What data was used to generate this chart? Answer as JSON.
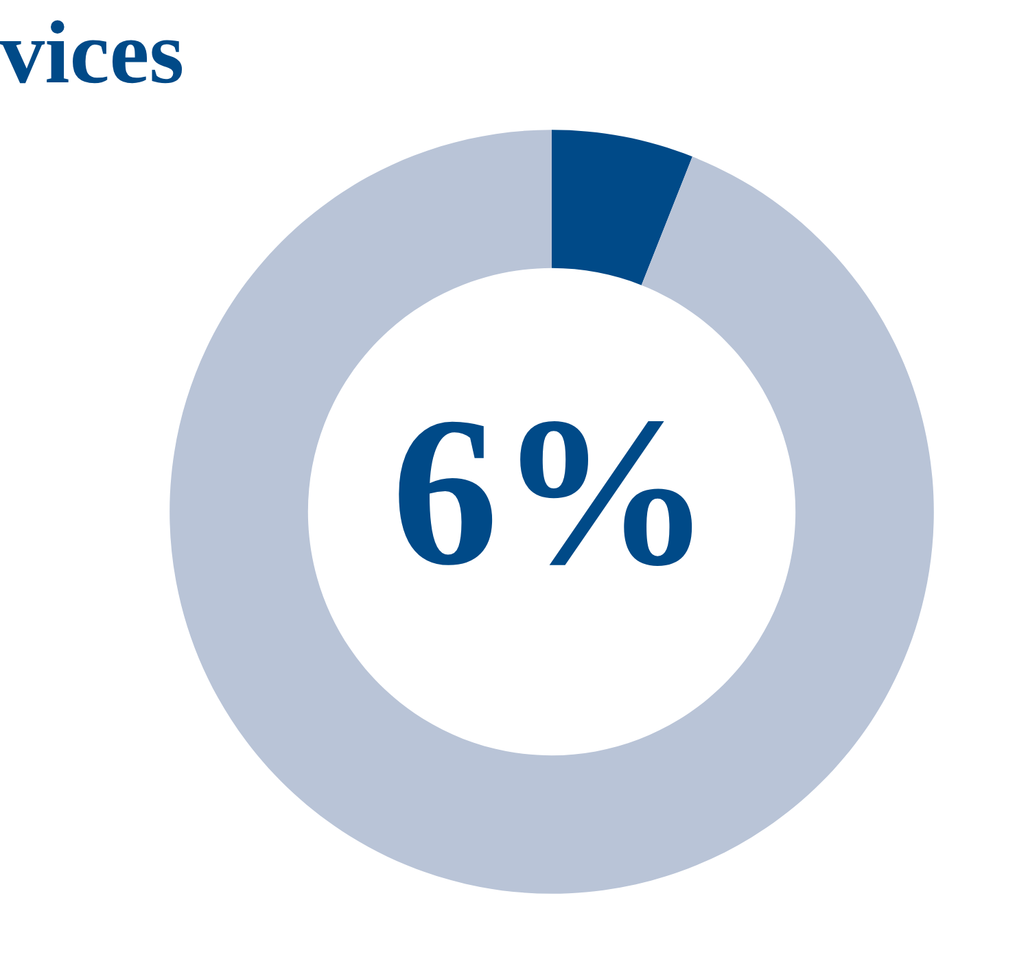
{
  "chart_data": {
    "type": "donut",
    "title": "vices",
    "categories": [
      null,
      null
    ],
    "values": [
      6,
      94
    ],
    "colors": [
      "#004a88",
      "#b9c4d7"
    ],
    "value_labels": [
      "6%",
      null
    ],
    "legend": false
  }
}
